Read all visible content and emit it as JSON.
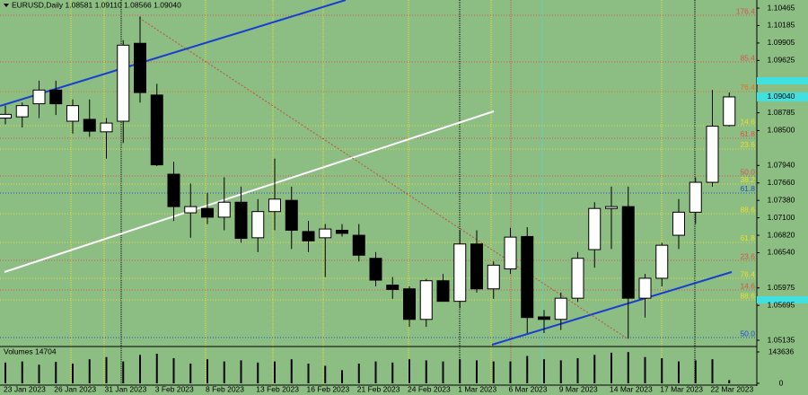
{
  "chart_data": {
    "type": "candlestick",
    "title": "EURUSD,Daily  1.08581 1.09110 1.08566 1.09040",
    "background": "#8cbd82",
    "up_color": "#ffffff",
    "down_color": "#000000",
    "categories": [
      "23 Jan 2023",
      null,
      null,
      "26 Jan 2023",
      null,
      null,
      "31 Jan 2023",
      null,
      null,
      "3 Feb 2023",
      null,
      null,
      "8 Feb 2023",
      null,
      null,
      "13 Feb 2023",
      null,
      null,
      "16 Feb 2023",
      null,
      null,
      "21 Feb 2023",
      null,
      null,
      "24 Feb 2023",
      null,
      null,
      "1 Mar 2023",
      null,
      null,
      "6 Mar 2023",
      null,
      null,
      "9 Mar 2023",
      null,
      null,
      "14 Mar 2023",
      null,
      null,
      "17 Mar 2023",
      null,
      null,
      "22 Mar 2023",
      null
    ],
    "open": [
      1.087,
      1.0872,
      1.0893,
      1.0915,
      1.0865,
      1.0868,
      1.0848,
      1.0865,
      1.099,
      1.0907,
      1.078,
      1.0718,
      1.0725,
      1.0711,
      1.0735,
      1.0678,
      1.072,
      1.0738,
      1.0688,
      1.0678,
      1.069,
      1.0682,
      1.0645,
      1.0602,
      1.0596,
      1.0547,
      1.0609,
      1.0576,
      1.0668,
      1.0596,
      1.0628,
      1.068,
      1.0551,
      1.0547,
      1.0581,
      1.0659,
      1.0725,
      1.0728,
      1.0581,
      1.0613,
      1.0682,
      1.0719,
      1.0767,
      1.08581
    ],
    "high": [
      1.089,
      1.0895,
      1.093,
      1.093,
      1.09,
      1.09,
      1.087,
      1.0995,
      1.1033,
      1.0925,
      1.08,
      1.0765,
      1.075,
      1.0775,
      1.076,
      1.074,
      1.0805,
      1.076,
      1.0705,
      1.07,
      1.07,
      1.07,
      1.0655,
      1.0615,
      1.06,
      1.0612,
      1.062,
      1.069,
      1.069,
      1.064,
      1.0694,
      1.0695,
      1.0562,
      1.059,
      1.0655,
      1.0735,
      1.076,
      1.076,
      1.062,
      1.067,
      1.074,
      1.0775,
      1.0915,
      1.0911
    ],
    "low": [
      1.086,
      1.0855,
      1.087,
      1.0875,
      1.0845,
      1.084,
      1.0805,
      1.083,
      1.0895,
      1.0793,
      1.0705,
      1.0678,
      1.07,
      1.069,
      1.067,
      1.0655,
      1.069,
      1.066,
      1.0655,
      1.0615,
      1.068,
      1.064,
      1.06,
      1.058,
      1.0535,
      1.0535,
      1.058,
      1.0565,
      1.059,
      1.058,
      1.062,
      1.0525,
      1.0525,
      1.053,
      1.0575,
      1.063,
      1.066,
      1.0516,
      1.055,
      1.06,
      1.066,
      1.07,
      1.076,
      1.08566
    ],
    "close": [
      1.0876,
      1.089,
      1.0915,
      1.0893,
      1.089,
      1.0849,
      1.0862,
      1.0987,
      1.0911,
      1.0795,
      1.0728,
      1.0728,
      1.0711,
      1.0735,
      1.0677,
      1.072,
      1.074,
      1.069,
      1.0673,
      1.0692,
      1.0685,
      1.065,
      1.061,
      1.0595,
      1.0547,
      1.0609,
      1.0576,
      1.0668,
      1.0596,
      1.0634,
      1.0679,
      1.055,
      1.0547,
      1.0581,
      1.0645,
      1.0725,
      1.0728,
      1.0581,
      1.0613,
      1.0666,
      1.0719,
      1.0767,
      1.0857,
      1.0904
    ],
    "ylim": [
      1.05049,
      1.10595
    ],
    "yticks": [
      1.10465,
      1.10185,
      1.09905,
      1.09625,
      1.08785,
      {
        "value": 1.085,
        "label": "1.08500"
      },
      {
        "value": 1.0794,
        "label": "1.07940"
      },
      {
        "value": 1.0766,
        "label": "1.07660"
      },
      {
        "value": 1.0738,
        "label": "1.07380"
      },
      {
        "value": 1.071,
        "label": "1.07100"
      },
      {
        "value": 1.0682,
        "label": "1.06820"
      },
      {
        "value": 1.0654,
        "label": "1.06540"
      },
      1.05975,
      1.05695,
      1.05135
    ],
    "current_price": {
      "value": 1.0904,
      "label": "1.09040"
    },
    "levels": [
      {
        "label": "176.4",
        "value": 1.1035,
        "color": "#d9534f"
      },
      {
        "label": "85.4",
        "value": 1.09601,
        "color": "#d9534f"
      },
      {
        "label": "76.4",
        "value": 1.09126,
        "color": "#e07030"
      },
      {
        "label": "14.6",
        "value": 1.08578,
        "color": "#e8e030"
      },
      {
        "label": "61.8",
        "value": 1.08377,
        "color": "#d9534f"
      },
      {
        "label": "23.6",
        "value": 1.08204,
        "color": "#e8e030"
      },
      {
        "label": "50.0",
        "value": 1.07771,
        "color": "#d9534f"
      },
      {
        "label": "38.2",
        "value": 1.07642,
        "color": "#e8e030"
      },
      {
        "label": "61.8",
        "value": 1.07498,
        "color": "#2050d0"
      },
      {
        "label": "88.6",
        "value": 1.07166,
        "color": "#e8e030"
      },
      {
        "label": "61.8",
        "value": 1.06706,
        "color": "#e8e030"
      },
      {
        "label": "23.6",
        "value": 1.06417,
        "color": "#d9534f"
      },
      {
        "label": "76.4",
        "value": 1.06129,
        "color": "#e8e030"
      },
      {
        "label": "14.6",
        "value": 1.05942,
        "color": "#d9534f"
      },
      {
        "label": "88.6",
        "value": 1.05783,
        "color": "#e8e030"
      },
      {
        "label": "50.0",
        "value": 1.05178,
        "color": "#2050d0"
      }
    ],
    "volume": {
      "label": "Volumes 14704",
      "color": "#000000",
      "values": [
        95000,
        100000,
        85000,
        98000,
        90000,
        110000,
        120000,
        100000,
        130000,
        135000,
        115000,
        90000,
        110000,
        100000,
        105000,
        95000,
        100000,
        110000,
        90000,
        80000,
        60000,
        90000,
        100000,
        95000,
        110000,
        105000,
        100000,
        110000,
        105000,
        100000,
        100000,
        125000,
        110000,
        105000,
        115000,
        130000,
        140000,
        143000,
        120000,
        115000,
        100000,
        105000,
        110000,
        14704
      ],
      "ylim": [
        0,
        143636
      ],
      "yticks": [
        143636,
        0
      ]
    }
  }
}
